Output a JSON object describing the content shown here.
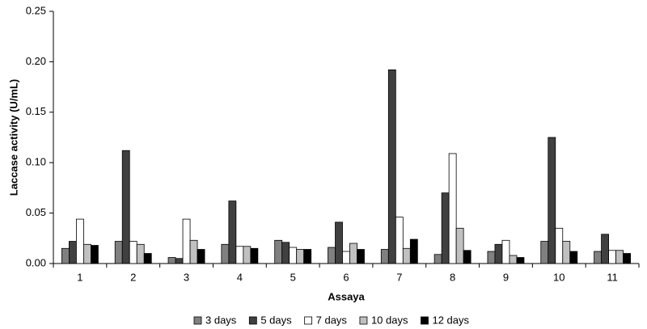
{
  "chart_data": {
    "type": "bar",
    "x_label": "Assaya",
    "y_label": "Laccase activity (U/mL)",
    "categories": [
      "1",
      "2",
      "3",
      "4",
      "5",
      "6",
      "7",
      "8",
      "9",
      "10",
      "11"
    ],
    "series": [
      {
        "name": "3 days",
        "color": "#808080",
        "values": [
          0.015,
          0.022,
          0.006,
          0.019,
          0.023,
          0.016,
          0.014,
          0.009,
          0.012,
          0.022,
          0.012
        ]
      },
      {
        "name": "5 days",
        "color": "#404040",
        "values": [
          0.022,
          0.112,
          0.005,
          0.062,
          0.021,
          0.041,
          0.192,
          0.07,
          0.019,
          0.125,
          0.029
        ]
      },
      {
        "name": "7 days",
        "color": "#ffffff",
        "values": [
          0.044,
          0.022,
          0.044,
          0.017,
          0.016,
          0.012,
          0.046,
          0.109,
          0.023,
          0.035,
          0.013
        ]
      },
      {
        "name": "10 days",
        "color": "#c0c0c0",
        "values": [
          0.019,
          0.019,
          0.023,
          0.017,
          0.014,
          0.02,
          0.015,
          0.035,
          0.008,
          0.022,
          0.013
        ]
      },
      {
        "name": "12 days",
        "color": "#000000",
        "values": [
          0.018,
          0.01,
          0.014,
          0.015,
          0.014,
          0.014,
          0.024,
          0.013,
          0.006,
          0.012,
          0.01
        ]
      }
    ],
    "ylim": [
      0,
      0.25
    ],
    "yticks": [
      {
        "value": 0,
        "label": "0.00"
      },
      {
        "value": 0.05,
        "label": "0.05"
      },
      {
        "value": 0.1,
        "label": "0.10"
      },
      {
        "value": 0.15,
        "label": "0.15"
      },
      {
        "value": 0.2,
        "label": "0.20"
      },
      {
        "value": 0.25,
        "label": "0.25"
      }
    ],
    "legend": "bottom"
  }
}
